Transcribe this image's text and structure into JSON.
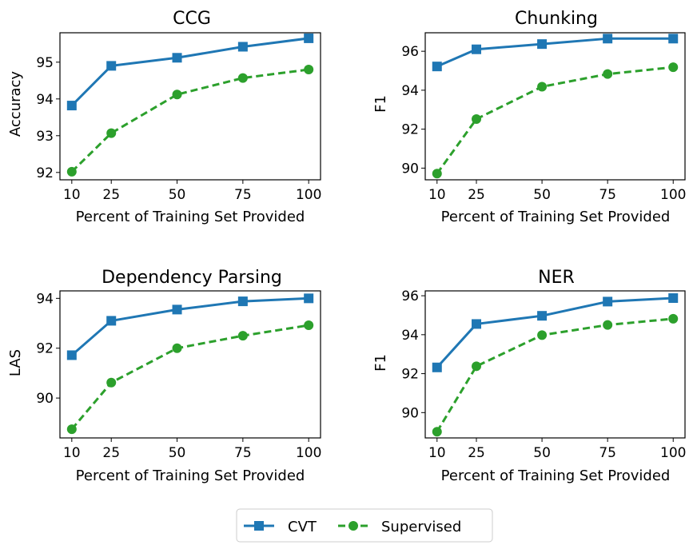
{
  "chart_data": [
    {
      "type": "line",
      "title": "CCG",
      "xlabel": "Percent of Training Set Provided",
      "ylabel": "Accuracy",
      "x": [
        10,
        25,
        50,
        75,
        100
      ],
      "xticks": [
        "10",
        "25",
        "50",
        "75",
        "100"
      ],
      "yticks": [
        "92",
        "93",
        "94",
        "95"
      ],
      "ylim": [
        91.8,
        95.8
      ],
      "xlim": [
        5.5,
        104.5
      ],
      "series": [
        {
          "name": "CVT",
          "values": [
            93.82,
            94.9,
            95.12,
            95.42,
            95.65
          ]
        },
        {
          "name": "Supervised",
          "values": [
            92.02,
            93.07,
            94.12,
            94.57,
            94.8
          ]
        }
      ]
    },
    {
      "type": "line",
      "title": "Chunking",
      "xlabel": "Percent of Training Set Provided",
      "ylabel": "F1",
      "x": [
        10,
        25,
        50,
        75,
        100
      ],
      "xticks": [
        "10",
        "25",
        "50",
        "75",
        "100"
      ],
      "yticks": [
        "90",
        "92",
        "94",
        "96"
      ],
      "ylim": [
        89.4,
        96.95
      ],
      "xlim": [
        5.5,
        104.5
      ],
      "series": [
        {
          "name": "CVT",
          "values": [
            95.22,
            96.1,
            96.37,
            96.65,
            96.65
          ]
        },
        {
          "name": "Supervised",
          "values": [
            89.72,
            92.52,
            94.18,
            94.83,
            95.18
          ]
        }
      ]
    },
    {
      "type": "line",
      "title": "Dependency Parsing",
      "xlabel": "Percent of Training Set Provided",
      "ylabel": "LAS",
      "x": [
        10,
        25,
        50,
        75,
        100
      ],
      "xticks": [
        "10",
        "25",
        "50",
        "75",
        "100"
      ],
      "yticks": [
        "90",
        "92",
        "94"
      ],
      "ylim": [
        88.4,
        94.3
      ],
      "xlim": [
        5.5,
        104.5
      ],
      "series": [
        {
          "name": "CVT",
          "values": [
            91.72,
            93.1,
            93.55,
            93.88,
            94.0
          ]
        },
        {
          "name": "Supervised",
          "values": [
            88.75,
            90.62,
            92.0,
            92.5,
            92.92
          ]
        }
      ]
    },
    {
      "type": "line",
      "title": "NER",
      "xlabel": "Percent of Training Set Provided",
      "ylabel": "F1",
      "x": [
        10,
        25,
        50,
        75,
        100
      ],
      "xticks": [
        "10",
        "25",
        "50",
        "75",
        "100"
      ],
      "yticks": [
        "90",
        "92",
        "94",
        "96"
      ],
      "ylim": [
        88.7,
        96.25
      ],
      "xlim": [
        5.5,
        104.5
      ],
      "series": [
        {
          "name": "CVT",
          "values": [
            92.32,
            94.55,
            94.97,
            95.7,
            95.88
          ]
        },
        {
          "name": "Supervised",
          "values": [
            89.02,
            92.38,
            93.98,
            94.5,
            94.82
          ]
        }
      ]
    }
  ],
  "legend": {
    "placement": "bottom-center",
    "entries": [
      {
        "label": "CVT",
        "color": "#1f77b4",
        "marker": "square",
        "dash": "solid"
      },
      {
        "label": "Supervised",
        "color": "#2ca02c",
        "marker": "circle",
        "dash": "dashed"
      }
    ]
  },
  "colors": {
    "cvt": "#1f77b4",
    "supervised": "#2ca02c"
  }
}
